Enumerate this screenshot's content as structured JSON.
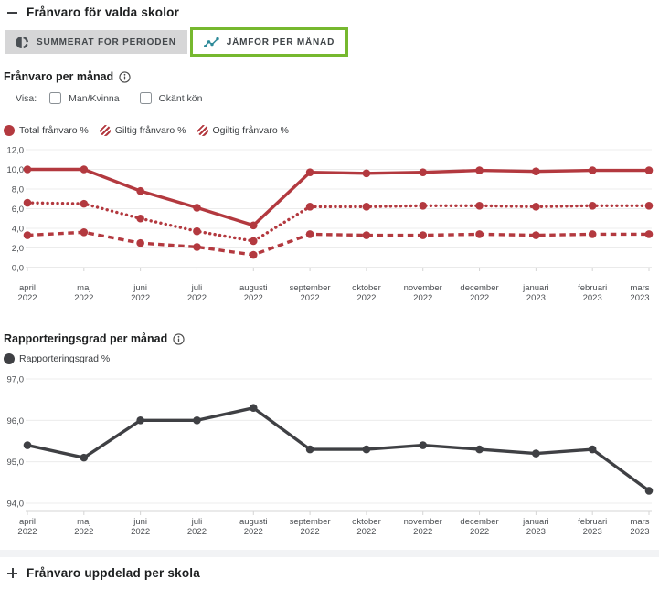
{
  "colors": {
    "red": "#b3393f",
    "dark": "#3f4044",
    "green": "#76b82f",
    "teal": "#2e8a99",
    "tabgray": "#d6d6d7"
  },
  "header": {
    "title": "Frånvaro för valda skolor",
    "state": "expanded"
  },
  "tabs": [
    {
      "label": "SUMMERAT FÖR PERIODEN",
      "selected": false
    },
    {
      "label": "JÄMFÖR PER MÅNAD",
      "selected": true
    }
  ],
  "filters": {
    "show_label": "Visa:",
    "checkboxes": [
      {
        "label": "Man/Kvinna",
        "checked": false
      },
      {
        "label": "Okänt kön",
        "checked": false
      }
    ]
  },
  "footer": {
    "expander_label": "Frånvaro uppdelad per skola",
    "state": "collapsed"
  },
  "chart_data": [
    {
      "type": "line",
      "title": "Frånvaro per månad",
      "categories": [
        "april 2022",
        "maj 2022",
        "juni 2022",
        "juli 2022",
        "augusti 2022",
        "september 2022",
        "oktober 2022",
        "november 2022",
        "december 2022",
        "januari 2023",
        "februari 2023",
        "mars 2023"
      ],
      "ylim": [
        0,
        12
      ],
      "ytick_labels": [
        "12,0",
        "10,0",
        "8,0",
        "6,0",
        "4,0",
        "2,0",
        "0,0"
      ],
      "grid": "horizontal",
      "legend_position": "top",
      "series": [
        {
          "name": "Total frånvaro %",
          "marker": "solid",
          "line_style": "solid",
          "color": "#b3393f",
          "values": [
            10.0,
            10.0,
            7.8,
            6.1,
            4.3,
            9.7,
            9.6,
            9.7,
            9.9,
            9.8,
            9.9,
            9.9
          ]
        },
        {
          "name": "Giltig frånvaro %",
          "marker": "striped",
          "line_style": "dotted",
          "color": "#b3393f",
          "values": [
            6.6,
            6.5,
            5.0,
            3.7,
            2.7,
            6.2,
            6.2,
            6.3,
            6.3,
            6.2,
            6.3,
            6.3
          ]
        },
        {
          "name": "Ogiltig frånvaro %",
          "marker": "striped",
          "line_style": "dashed",
          "color": "#b3393f",
          "values": [
            3.3,
            3.6,
            2.5,
            2.1,
            1.3,
            3.4,
            3.3,
            3.3,
            3.4,
            3.3,
            3.4,
            3.4
          ]
        }
      ]
    },
    {
      "type": "line",
      "title": "Rapporteringsgrad per månad",
      "categories": [
        "april 2022",
        "maj 2022",
        "juni 2022",
        "juli 2022",
        "augusti 2022",
        "september 2022",
        "oktober 2022",
        "november 2022",
        "december 2022",
        "januari 2023",
        "februari 2023",
        "mars 2023"
      ],
      "ylim": [
        94,
        97
      ],
      "ytick_labels": [
        "97,0",
        "96,0",
        "95,0",
        "94,0"
      ],
      "grid": "horizontal",
      "legend_position": "top",
      "series": [
        {
          "name": "Rapporteringsgrad %",
          "marker": "solid",
          "line_style": "solid",
          "color": "#3f4044",
          "values": [
            95.4,
            95.1,
            96.0,
            96.0,
            96.3,
            95.3,
            95.3,
            95.4,
            95.3,
            95.2,
            95.3,
            94.3
          ]
        }
      ]
    }
  ]
}
